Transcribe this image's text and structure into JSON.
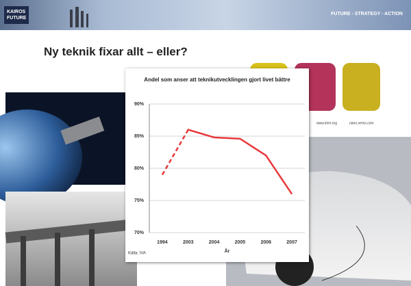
{
  "header": {
    "logo": [
      "KAIROS",
      "FUTURE"
    ],
    "tagline": "FUTURE - STRATEGY - ACTION"
  },
  "slide": {
    "title": "Ny teknik fixar allt – eller?",
    "image_credits": [
      "www.imm.org",
      "nano.xerox.com"
    ]
  },
  "chart_data": {
    "type": "line",
    "title": "Andel som anser att teknikutvecklingen gjort livet bättre",
    "categories": [
      "1994",
      "2003",
      "2004",
      "2005",
      "2006",
      "2007"
    ],
    "values": [
      79,
      86,
      84.8,
      84.6,
      82,
      76
    ],
    "color": "#e8383a",
    "ylim": [
      70,
      90
    ],
    "yticks": [
      {
        "value": 70,
        "label": "70%"
      },
      {
        "value": 75,
        "label": "75%"
      },
      {
        "value": 80,
        "label": "80%"
      },
      {
        "value": 85,
        "label": "85%"
      },
      {
        "value": 90,
        "label": "90%"
      }
    ],
    "grid": true,
    "x_label": "År",
    "source": "Källa: IVA"
  }
}
